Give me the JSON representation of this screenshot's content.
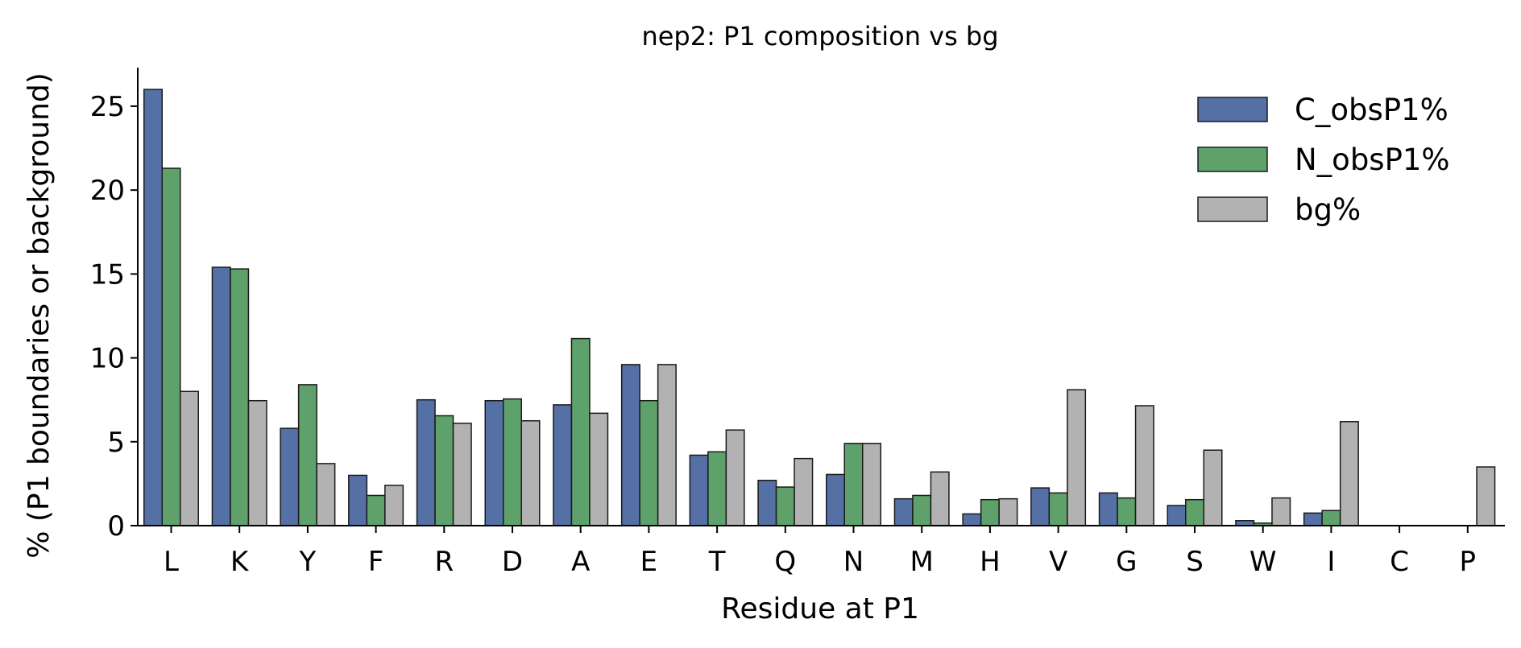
{
  "chart_data": {
    "type": "bar",
    "title": "nep2: P1 composition vs bg",
    "xlabel": "Residue at P1",
    "ylabel": "% (P1 boundaries or background)",
    "categories": [
      "L",
      "K",
      "Y",
      "F",
      "R",
      "D",
      "A",
      "E",
      "T",
      "Q",
      "N",
      "M",
      "H",
      "V",
      "G",
      "S",
      "W",
      "I",
      "C",
      "P"
    ],
    "series": [
      {
        "name": "C_obsP1%",
        "color": "#5470a4",
        "values": [
          26.0,
          15.4,
          5.8,
          3.0,
          7.5,
          7.45,
          7.2,
          9.6,
          4.2,
          2.7,
          3.05,
          1.6,
          0.7,
          2.25,
          1.95,
          1.2,
          0.3,
          0.75,
          0.0,
          0.0
        ]
      },
      {
        "name": "N_obsP1%",
        "color": "#5ea16b",
        "values": [
          21.3,
          15.3,
          8.4,
          1.8,
          6.55,
          7.55,
          11.15,
          7.45,
          4.4,
          2.3,
          4.9,
          1.8,
          1.55,
          1.95,
          1.65,
          1.55,
          0.15,
          0.9,
          0.0,
          0.0
        ]
      },
      {
        "name": "bg%",
        "color": "#b2b2b2",
        "values": [
          8.0,
          7.45,
          3.7,
          2.4,
          6.1,
          6.25,
          6.7,
          9.6,
          5.7,
          4.0,
          4.9,
          3.2,
          1.6,
          8.1,
          7.15,
          4.5,
          1.65,
          6.2,
          0.0,
          3.5
        ]
      }
    ],
    "yticks": [
      0,
      5,
      10,
      15,
      20,
      25
    ],
    "ylim": [
      0,
      27.3
    ],
    "grid": false,
    "legend": "top-right"
  }
}
